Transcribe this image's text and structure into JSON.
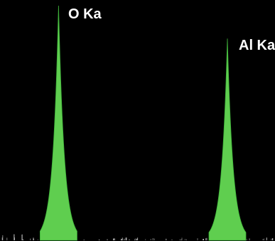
{
  "chart_data": {
    "type": "line",
    "title": "",
    "xlabel": "",
    "ylabel": "",
    "grid": false,
    "legend": "none",
    "xlim": [
      0,
      1
    ],
    "ylim": [
      0,
      1
    ],
    "colors": {
      "background": "#000000",
      "peak_fill": "#5fce4f",
      "peak_edge": "#3fb23a",
      "label": "#ffffff",
      "baseline_noise": "#ffffff"
    },
    "series": [
      {
        "values": [
          {
            "x": 0.213,
            "y": 1.0
          },
          {
            "x": 0.827,
            "y": 0.86
          }
        ]
      }
    ],
    "annotations": [
      {
        "text": "O Ka",
        "peak_index": 0
      },
      {
        "text": "Al Ka",
        "peak_index": 1
      }
    ]
  }
}
